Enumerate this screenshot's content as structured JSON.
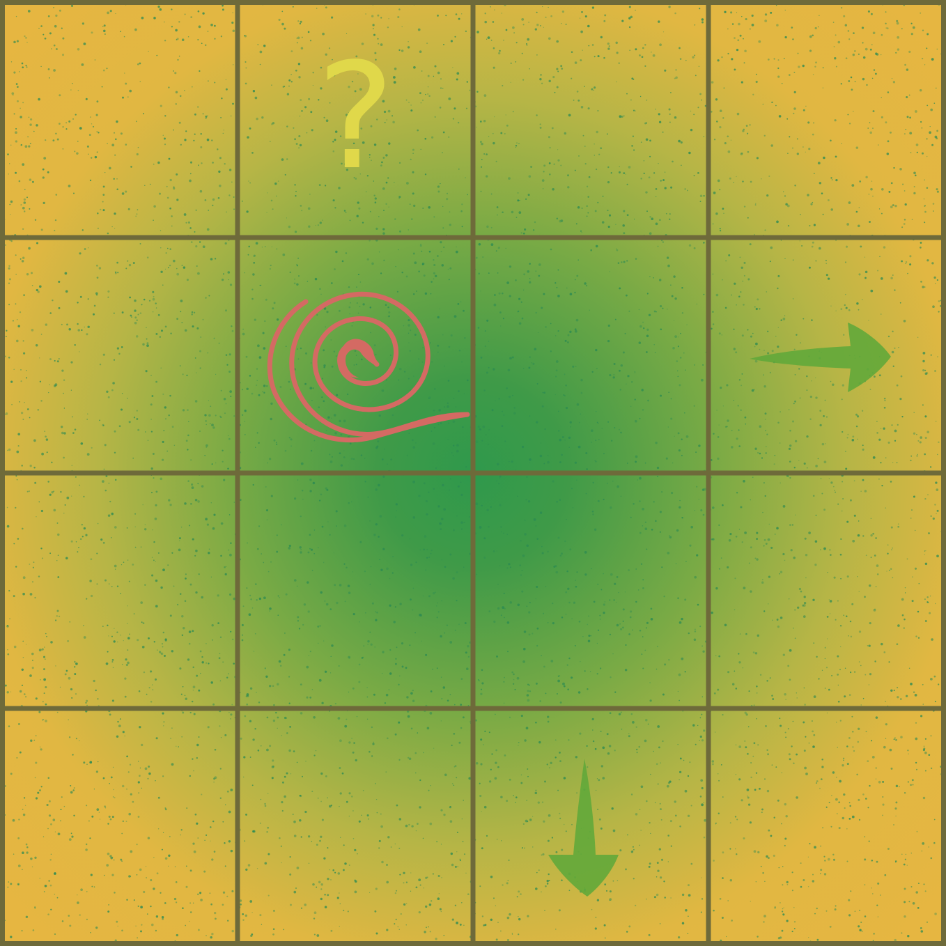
{
  "board": {
    "rows": 4,
    "cols": 4,
    "grid_line_color": "#6e6a3a",
    "center_color": "#2f994c",
    "edge_color": "#e7b641",
    "speckle_color": "#2a8a52"
  },
  "cells": [
    {
      "row": 0,
      "col": 1,
      "mark": "question-mark",
      "text": "?",
      "color": "#e0d84a"
    },
    {
      "row": 1,
      "col": 1,
      "mark": "spiral",
      "color": "#d46a63"
    },
    {
      "row": 1,
      "col": 3,
      "mark": "arrow-right",
      "color": "#62a83a"
    },
    {
      "row": 3,
      "col": 2,
      "mark": "arrow-down",
      "color": "#62a83a"
    }
  ]
}
